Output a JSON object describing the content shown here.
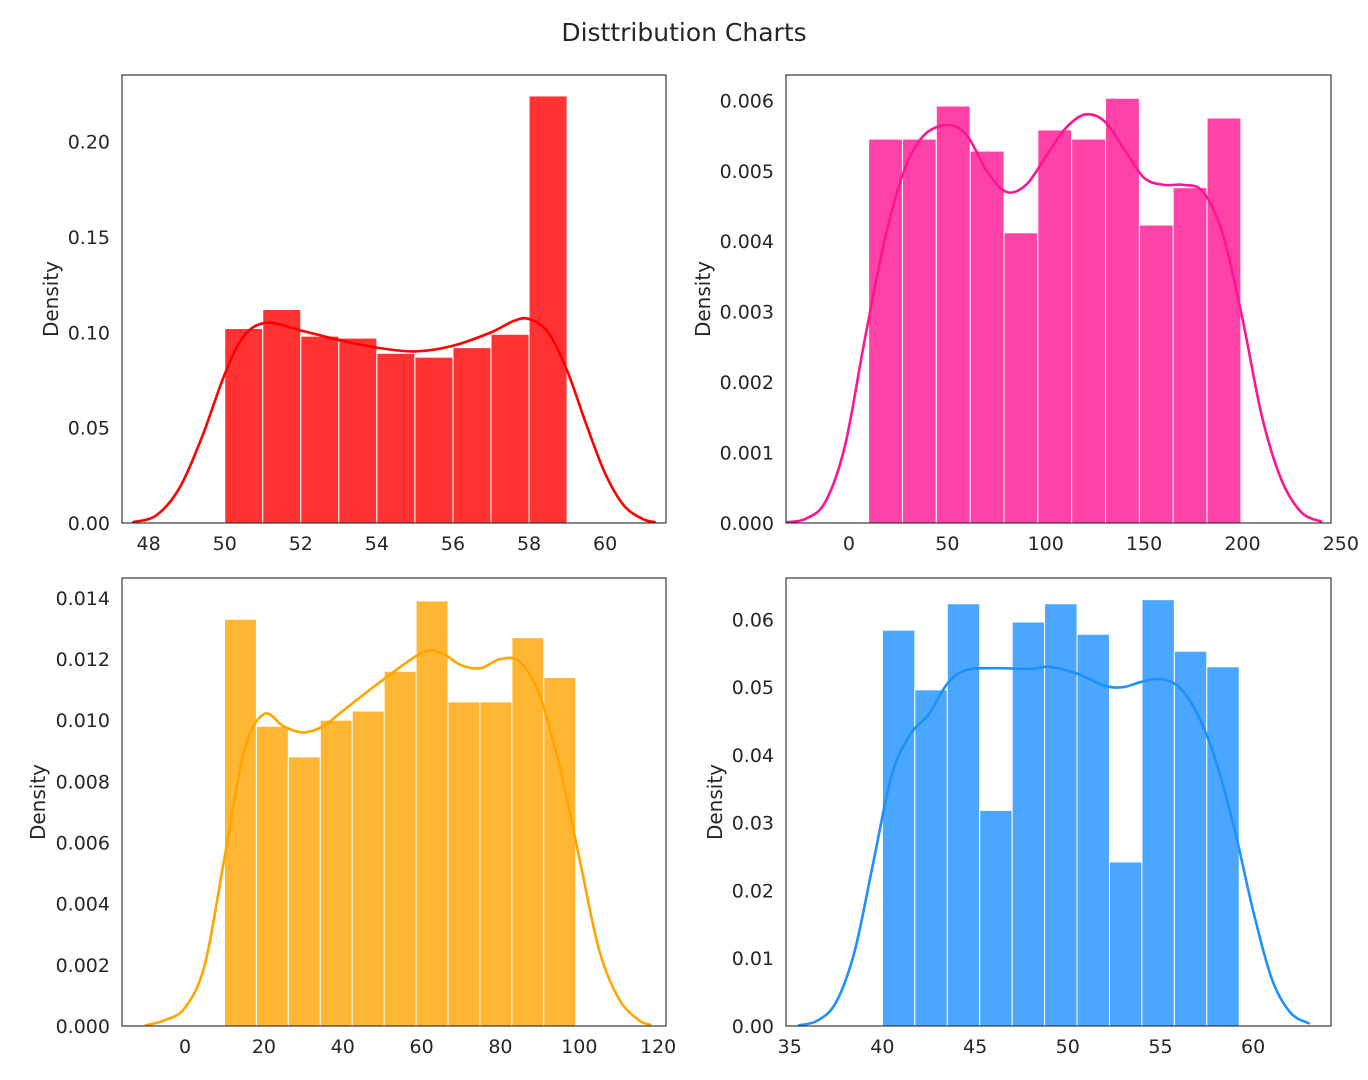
{
  "title": "Disttribution Charts",
  "chart_data": [
    {
      "type": "histogram",
      "position": "top-left",
      "color": "#ff0000",
      "bar_color": "#ff3333",
      "xlabel": "",
      "ylabel": "Density",
      "xlim": [
        47.3,
        61.6
      ],
      "ylim": [
        0,
        0.235
      ],
      "xticks": [
        48,
        50,
        52,
        54,
        56,
        58,
        60
      ],
      "yticks": [
        0.0,
        0.05,
        0.1,
        0.15,
        0.2
      ],
      "xtick_labels": [
        "48",
        "50",
        "52",
        "54",
        "56",
        "58",
        "60"
      ],
      "ytick_labels": [
        "0.00",
        "0.05",
        "0.10",
        "0.15",
        "0.20"
      ],
      "bins": [
        {
          "x0": 50.0,
          "x1": 51.0,
          "density": 0.102
        },
        {
          "x0": 51.0,
          "x1": 52.0,
          "density": 0.112
        },
        {
          "x0": 52.0,
          "x1": 53.0,
          "density": 0.098
        },
        {
          "x0": 53.0,
          "x1": 54.0,
          "density": 0.097
        },
        {
          "x0": 54.0,
          "x1": 55.0,
          "density": 0.089
        },
        {
          "x0": 55.0,
          "x1": 56.0,
          "density": 0.087
        },
        {
          "x0": 56.0,
          "x1": 57.0,
          "density": 0.092
        },
        {
          "x0": 57.0,
          "x1": 58.0,
          "density": 0.099
        },
        {
          "x0": 58.0,
          "x1": 59.0,
          "density": 0.224
        }
      ],
      "kde": [
        [
          47.6,
          0.0005
        ],
        [
          48.2,
          0.004
        ],
        [
          48.8,
          0.018
        ],
        [
          49.4,
          0.045
        ],
        [
          50.0,
          0.078
        ],
        [
          50.5,
          0.098
        ],
        [
          51.1,
          0.105
        ],
        [
          52.0,
          0.101
        ],
        [
          53.0,
          0.096
        ],
        [
          54.0,
          0.092
        ],
        [
          55.0,
          0.09
        ],
        [
          56.0,
          0.093
        ],
        [
          57.0,
          0.1
        ],
        [
          57.6,
          0.106
        ],
        [
          58.0,
          0.107
        ],
        [
          58.5,
          0.1
        ],
        [
          59.0,
          0.08
        ],
        [
          59.5,
          0.052
        ],
        [
          60.0,
          0.026
        ],
        [
          60.5,
          0.009
        ],
        [
          61.0,
          0.002
        ],
        [
          61.3,
          0.0005
        ]
      ]
    },
    {
      "type": "histogram",
      "position": "top-right",
      "color": "#ff1493",
      "bar_color": "#ff42a8",
      "xlabel": "",
      "ylabel": "Density",
      "xlim": [
        -32,
        245
      ],
      "ylim": [
        0,
        0.00636
      ],
      "xticks": [
        0,
        50,
        100,
        150,
        200,
        250
      ],
      "yticks": [
        0.0,
        0.001,
        0.002,
        0.003,
        0.004,
        0.005,
        0.006
      ],
      "xtick_labels": [
        "0",
        "50",
        "100",
        "150",
        "200",
        "250"
      ],
      "ytick_labels": [
        "0.000",
        "0.001",
        "0.002",
        "0.003",
        "0.004",
        "0.005",
        "0.006"
      ],
      "bins": [
        {
          "x0": 10.0,
          "x1": 27.2,
          "density": 0.00545
        },
        {
          "x0": 27.2,
          "x1": 44.4,
          "density": 0.00545
        },
        {
          "x0": 44.4,
          "x1": 61.6,
          "density": 0.00592
        },
        {
          "x0": 61.6,
          "x1": 78.8,
          "density": 0.00528
        },
        {
          "x0": 78.8,
          "x1": 96.0,
          "density": 0.00412
        },
        {
          "x0": 96.0,
          "x1": 113.2,
          "density": 0.00558
        },
        {
          "x0": 113.2,
          "x1": 130.4,
          "density": 0.00545
        },
        {
          "x0": 130.4,
          "x1": 147.6,
          "density": 0.00603
        },
        {
          "x0": 147.6,
          "x1": 164.8,
          "density": 0.00423
        },
        {
          "x0": 164.8,
          "x1": 182.0,
          "density": 0.00476
        },
        {
          "x0": 182.0,
          "x1": 199.2,
          "density": 0.00575
        }
      ],
      "kde": [
        [
          -32,
          1e-05
        ],
        [
          -22,
          6e-05
        ],
        [
          -12,
          0.0003
        ],
        [
          -2,
          0.0011
        ],
        [
          8,
          0.0026
        ],
        [
          18,
          0.004
        ],
        [
          28,
          0.005
        ],
        [
          38,
          0.0055
        ],
        [
          50,
          0.00565
        ],
        [
          60,
          0.0055
        ],
        [
          70,
          0.005
        ],
        [
          80,
          0.0047
        ],
        [
          90,
          0.0048
        ],
        [
          100,
          0.0052
        ],
        [
          110,
          0.0056
        ],
        [
          120,
          0.0058
        ],
        [
          130,
          0.0057
        ],
        [
          140,
          0.0053
        ],
        [
          150,
          0.0049
        ],
        [
          160,
          0.0048
        ],
        [
          170,
          0.0048
        ],
        [
          180,
          0.0047
        ],
        [
          190,
          0.0041
        ],
        [
          200,
          0.0029
        ],
        [
          210,
          0.0015
        ],
        [
          220,
          0.0006
        ],
        [
          230,
          0.00015
        ],
        [
          240,
          2e-05
        ]
      ]
    },
    {
      "type": "histogram",
      "position": "bottom-left",
      "color": "#ffa500",
      "bar_color": "#ffb733",
      "xlabel": "",
      "ylabel": "Density",
      "xlim": [
        -16,
        122
      ],
      "ylim": [
        0,
        0.01465
      ],
      "xticks": [
        0,
        20,
        40,
        60,
        80,
        100,
        120
      ],
      "yticks": [
        0.0,
        0.002,
        0.004,
        0.006,
        0.008,
        0.01,
        0.012,
        0.014
      ],
      "xtick_labels": [
        "0",
        "20",
        "40",
        "60",
        "80",
        "100",
        "120"
      ],
      "ytick_labels": [
        "0.000",
        "0.002",
        "0.004",
        "0.006",
        "0.008",
        "0.010",
        "0.012",
        "0.014"
      ],
      "bins": [
        {
          "x0": 10.0,
          "x1": 18.1,
          "density": 0.0133
        },
        {
          "x0": 18.1,
          "x1": 26.2,
          "density": 0.0098
        },
        {
          "x0": 26.2,
          "x1": 34.3,
          "density": 0.0088
        },
        {
          "x0": 34.3,
          "x1": 42.4,
          "density": 0.01
        },
        {
          "x0": 42.4,
          "x1": 50.5,
          "density": 0.0103
        },
        {
          "x0": 50.5,
          "x1": 58.6,
          "density": 0.0116
        },
        {
          "x0": 58.6,
          "x1": 66.7,
          "density": 0.0139
        },
        {
          "x0": 66.7,
          "x1": 74.8,
          "density": 0.0106
        },
        {
          "x0": 74.8,
          "x1": 82.9,
          "density": 0.0106
        },
        {
          "x0": 82.9,
          "x1": 91.0,
          "density": 0.0127
        },
        {
          "x0": 91.0,
          "x1": 99.1,
          "density": 0.0114
        }
      ],
      "kde": [
        [
          -10,
          2e-05
        ],
        [
          -5,
          0.0002
        ],
        [
          0,
          0.0006
        ],
        [
          5,
          0.002
        ],
        [
          10,
          0.0055
        ],
        [
          15,
          0.009
        ],
        [
          20,
          0.0102
        ],
        [
          25,
          0.0098
        ],
        [
          30,
          0.0096
        ],
        [
          35,
          0.0098
        ],
        [
          40,
          0.0103
        ],
        [
          50,
          0.0113
        ],
        [
          60,
          0.0122
        ],
        [
          65,
          0.0122
        ],
        [
          70,
          0.0118
        ],
        [
          75,
          0.0117
        ],
        [
          80,
          0.012
        ],
        [
          85,
          0.0119
        ],
        [
          90,
          0.0108
        ],
        [
          95,
          0.0085
        ],
        [
          100,
          0.0055
        ],
        [
          105,
          0.0025
        ],
        [
          110,
          0.0009
        ],
        [
          115,
          0.0002
        ],
        [
          118,
          4e-05
        ]
      ]
    },
    {
      "type": "histogram",
      "position": "bottom-right",
      "color": "#1e90ff",
      "bar_color": "#4ba6ff",
      "xlabel": "",
      "ylabel": "Density",
      "xlim": [
        34.8,
        64.2
      ],
      "ylim": [
        0,
        0.0661
      ],
      "xticks": [
        35,
        40,
        45,
        50,
        55,
        60
      ],
      "yticks": [
        0.0,
        0.01,
        0.02,
        0.03,
        0.04,
        0.05,
        0.06
      ],
      "xtick_labels": [
        "35",
        "40",
        "45",
        "50",
        "55",
        "60"
      ],
      "ytick_labels": [
        "0.00",
        "0.01",
        "0.02",
        "0.03",
        "0.04",
        "0.05",
        "0.06"
      ],
      "bins": [
        {
          "x0": 40.0,
          "x1": 41.75,
          "density": 0.0584
        },
        {
          "x0": 41.75,
          "x1": 43.5,
          "density": 0.0496
        },
        {
          "x0": 43.5,
          "x1": 45.25,
          "density": 0.0623
        },
        {
          "x0": 45.25,
          "x1": 47.0,
          "density": 0.0318
        },
        {
          "x0": 47.0,
          "x1": 48.75,
          "density": 0.0596
        },
        {
          "x0": 48.75,
          "x1": 50.5,
          "density": 0.0623
        },
        {
          "x0": 50.5,
          "x1": 52.25,
          "density": 0.0578
        },
        {
          "x0": 52.25,
          "x1": 54.0,
          "density": 0.0242
        },
        {
          "x0": 54.0,
          "x1": 55.75,
          "density": 0.0629
        },
        {
          "x0": 55.75,
          "x1": 57.5,
          "density": 0.0553
        },
        {
          "x0": 57.5,
          "x1": 59.25,
          "density": 0.053
        }
      ],
      "kde": [
        [
          35.5,
          0.0001
        ],
        [
          36.5,
          0.0008
        ],
        [
          37.5,
          0.0035
        ],
        [
          38.5,
          0.011
        ],
        [
          39.5,
          0.024
        ],
        [
          40.5,
          0.037
        ],
        [
          41.5,
          0.043
        ],
        [
          42.5,
          0.046
        ],
        [
          43.5,
          0.0505
        ],
        [
          44.5,
          0.0525
        ],
        [
          46.0,
          0.0528
        ],
        [
          48.0,
          0.0527
        ],
        [
          49.0,
          0.053
        ],
        [
          50.5,
          0.052
        ],
        [
          52.0,
          0.0502
        ],
        [
          53.0,
          0.05
        ],
        [
          54.0,
          0.0508
        ],
        [
          55.0,
          0.0512
        ],
        [
          56.0,
          0.05
        ],
        [
          57.0,
          0.046
        ],
        [
          58.0,
          0.039
        ],
        [
          59.0,
          0.029
        ],
        [
          60.0,
          0.017
        ],
        [
          61.0,
          0.007
        ],
        [
          62.0,
          0.002
        ],
        [
          63.0,
          0.0004
        ]
      ]
    }
  ]
}
